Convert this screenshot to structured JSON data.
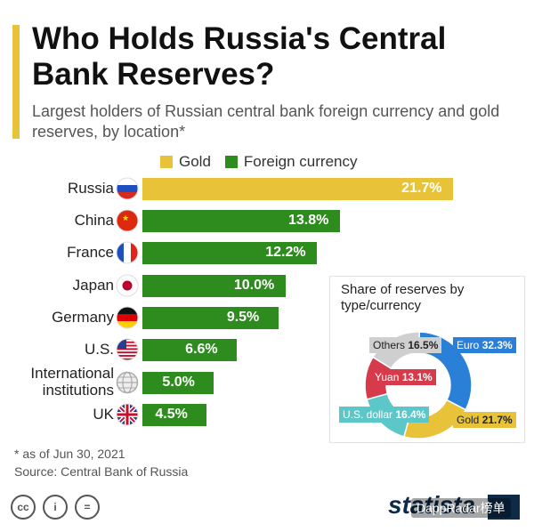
{
  "header": {
    "title": "Who Holds Russia's Central Bank Reserves?",
    "subtitle": "Largest holders of Russian central bank foreign currency and gold reserves, by location*"
  },
  "legend": [
    {
      "name": "Gold",
      "color": "#e8c33a"
    },
    {
      "name": "Foreign currency",
      "color": "#2e8b1e"
    }
  ],
  "chart_data": [
    {
      "type": "bar",
      "orientation": "horizontal",
      "categories": [
        "Russia",
        "China",
        "France",
        "Japan",
        "Germany",
        "U.S.",
        "International institutions",
        "UK"
      ],
      "flags": [
        "russia-flag-icon",
        "china-flag-icon",
        "france-flag-icon",
        "japan-flag-icon",
        "germany-flag-icon",
        "us-flag-icon",
        "globe-icon",
        "uk-flag-icon"
      ],
      "values": [
        21.7,
        13.8,
        12.2,
        10.0,
        9.5,
        6.6,
        5.0,
        4.5
      ],
      "value_labels": [
        "21.7%",
        "13.8%",
        "12.2%",
        "10.0%",
        "9.5%",
        "6.6%",
        "5.0%",
        "4.5%"
      ],
      "series_by_row": [
        "Gold",
        "Foreign currency",
        "Foreign currency",
        "Foreign currency",
        "Foreign currency",
        "Foreign currency",
        "Foreign currency",
        "Foreign currency"
      ],
      "xlim": [
        0,
        23
      ],
      "grid": false
    },
    {
      "type": "pie",
      "title": "Share of reserves by type/currency",
      "slices": [
        {
          "name": "Euro",
          "value": 32.3,
          "label": "32.3%",
          "color": "#2a7fd6"
        },
        {
          "name": "Gold",
          "value": 21.7,
          "label": "21.7%",
          "color": "#e8c33a"
        },
        {
          "name": "U.S. dollar",
          "value": 16.4,
          "label": "16.4%",
          "color": "#5bc7c9"
        },
        {
          "name": "Yuan",
          "value": 13.1,
          "label": "13.1%",
          "color": "#d73a4a"
        },
        {
          "name": "Others",
          "value": 16.5,
          "label": "16.5%",
          "color": "#cfcfcf"
        }
      ]
    }
  ],
  "footer": {
    "note": "* as of Jun 30, 2021",
    "source": "Source: Central Bank of Russia",
    "license_icons": [
      "cc",
      "i",
      "="
    ],
    "brand": "statista",
    "watermark": "DappRadar榜单"
  }
}
